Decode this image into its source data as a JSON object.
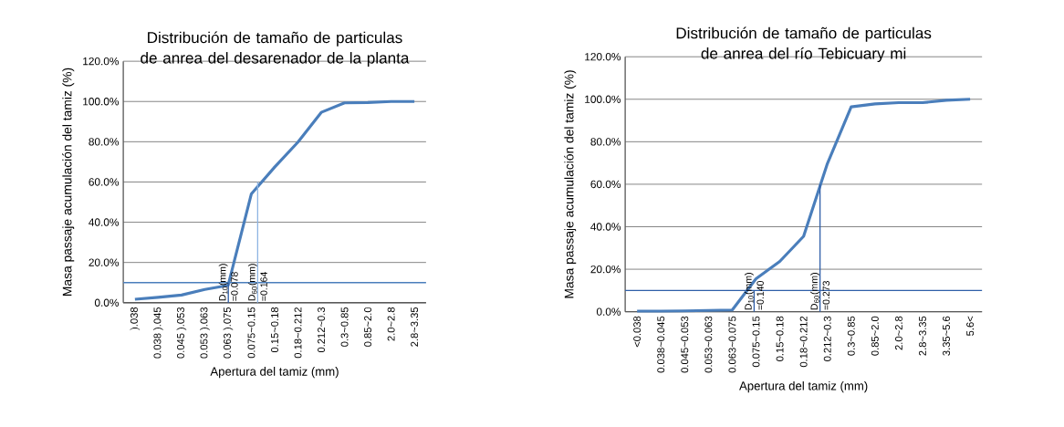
{
  "chart_data": [
    {
      "type": "line",
      "title": "Distribución de tamaño de particulas de anrea del desarenador de la planta",
      "xlabel": "Apertura del tamiz (mm)",
      "ylabel": "Masa passaje acumulación del tamiz (%)",
      "categories": [
        ").038",
        "0.038 ).045",
        "0.045 ).053",
        "0.053 ).063",
        "0.063 ).075",
        "0.075~0.15",
        "0.15~0.18",
        "0.18~0.212",
        "0.212~0.3",
        "0.3~0.85",
        "0.85~2.0",
        "2.0~2.8",
        "2.8~3.35"
      ],
      "series": [
        {
          "color": "#4a7ebb",
          "values": [
            1.7,
            2.7,
            3.8,
            6.6,
            8.6,
            54.1,
            67.4,
            79.8,
            94.6,
            99.3,
            99.5,
            100,
            100
          ]
        }
      ],
      "ylim": [
        0,
        120
      ],
      "yticks": [
        {
          "value": 0,
          "label": "0.0%"
        },
        {
          "value": 20,
          "label": "20.0%"
        },
        {
          "value": 40,
          "label": "40.0%"
        },
        {
          "value": 60,
          "label": "60.0%"
        },
        {
          "value": 80,
          "label": "80.0%"
        },
        {
          "value": 100,
          "label": "100.0%"
        },
        {
          "value": 120,
          "label": "120.0%"
        }
      ],
      "grid": "y",
      "marker": "none",
      "line_style": "solid",
      "ref_lines": [
        {
          "axis": "y",
          "value": 10,
          "color": "#4a7ebb"
        }
      ],
      "annotations": [
        {
          "text": "D$_{10}$(mm) =0.078",
          "y": 10
        },
        {
          "text": "D$_{60}$(mm) =0.164",
          "y": 60
        }
      ]
    },
    {
      "type": "line",
      "title": "Distribución de tamaño de particulas de anrea del río Tebicuary mi",
      "xlabel": "Apertura del tamiz (mm)",
      "ylabel": "Masa passaje acumulación del tamiz (%)",
      "categories": [
        "<0.038",
        "0.038~0.045",
        "0.045~0.053",
        "0.053~0.063",
        "0.063~0.075",
        "0.075~0.15",
        "0.15~0.18",
        "0.18~0.212",
        "0.212~0.3",
        "0.3~0.85",
        "0.85~2.0",
        "2.0~2.8",
        "2.8~3.35",
        "3.35~5.6",
        "5.6<"
      ],
      "series": [
        {
          "color": "#4a7ebb",
          "values": [
            0.3,
            0.3,
            0.4,
            0.6,
            0.8,
            15.5,
            23.7,
            35.5,
            69.7,
            96.4,
            97.8,
            98.4,
            98.4,
            99.5,
            100
          ]
        }
      ],
      "ylim": [
        0,
        120
      ],
      "yticks": [
        {
          "value": 0,
          "label": "0.0%"
        },
        {
          "value": 20,
          "label": "20.0%"
        },
        {
          "value": 40,
          "label": "40.0%"
        },
        {
          "value": 60,
          "label": "60.0%"
        },
        {
          "value": 80,
          "label": "80.0%"
        },
        {
          "value": 100,
          "label": "100.0%"
        },
        {
          "value": 120,
          "label": "120.0%"
        }
      ],
      "grid": "y",
      "marker": "none",
      "line_style": "solid",
      "ref_lines": [
        {
          "axis": "y",
          "value": 10,
          "color": "#2e5ea8"
        }
      ],
      "annotations": [
        {
          "text": "D$_{10}$(mm) =0.140",
          "y": 10
        },
        {
          "text": "D$_{60}$(mm) =0.273",
          "y": 60
        }
      ]
    }
  ]
}
